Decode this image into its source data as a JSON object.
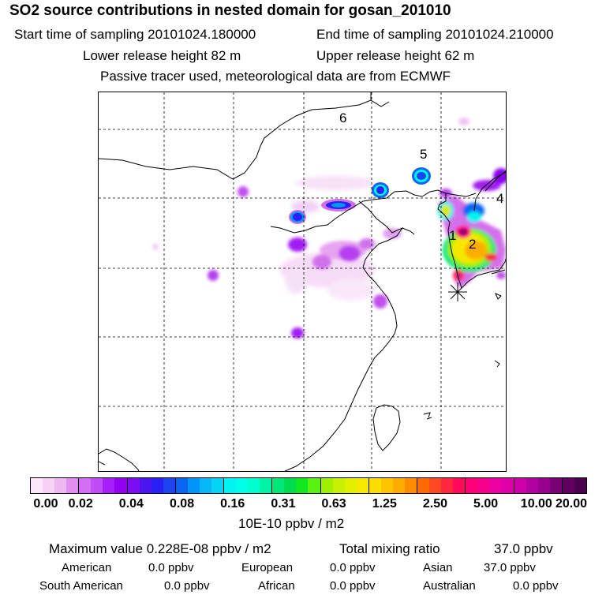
{
  "header": {
    "title": "SO2 source contributions in nested domain for gosan_201010",
    "start_label": "Start time of sampling 20101024.180000",
    "end_label": "End time of sampling 20101024.210000",
    "lower_label": "Lower release height   82 m",
    "upper_label": "Upper release height   62 m",
    "info": "Passive tracer used, meteorological data are from ECMWF"
  },
  "map_labels": {
    "l1": "1",
    "l2": "2",
    "l4": "4",
    "l5": "5",
    "l6": "6"
  },
  "colors": {
    "coast": "#000000",
    "grid": "#000000",
    "background": "#ffffff"
  },
  "chart_data": {
    "type": "heatmap",
    "title": "SO2 source contributions in nested domain for gosan_201010",
    "units": "10E-10 ppbv / m2",
    "legend_ticks": [
      "0.00",
      "0.02",
      "0.04",
      "0.08",
      "0.16",
      "0.31",
      "0.63",
      "1.25",
      "2.50",
      "5.00",
      "10.00",
      "20.00"
    ],
    "legend_colors": [
      "#fde8fb",
      "#f8d2f6",
      "#efb7f3",
      "#e28ef1",
      "#d46ef3",
      "#c04cf4",
      "#a81ef7",
      "#9400f2",
      "#7d0cf2",
      "#4a16f0",
      "#2a20f4",
      "#1e44f0",
      "#0a66f0",
      "#0096f5",
      "#08b8f6",
      "#06d4f4",
      "#00f4f0",
      "#00ffe8",
      "#00ffd0",
      "#00f4a8",
      "#00e878",
      "#00dc50",
      "#10e820",
      "#5af010",
      "#9cf000",
      "#c8f000",
      "#e2f000",
      "#f6e800",
      "#ffdc00",
      "#ffc400",
      "#ffac00",
      "#ff8c00",
      "#ff6a00",
      "#ff4820",
      "#ff2840",
      "#ff0a5a",
      "#ff0078",
      "#f8008e",
      "#ec00a0",
      "#e000aa",
      "#cc00a8",
      "#b200a0",
      "#96008c",
      "#7a0076",
      "#600060",
      "#4a004a"
    ],
    "site_marker": "asterisk"
  },
  "footer": {
    "max_label": "Maximum value  0.228E-08 ppbv / m2",
    "total_label": "Total mixing ratio",
    "total_value": "37.0 ppbv",
    "regions": [
      {
        "name": "American",
        "value": "0.0 ppbv"
      },
      {
        "name": "European",
        "value": "0.0 ppbv"
      },
      {
        "name": "Asian",
        "value": "37.0 ppbv"
      },
      {
        "name": "South American",
        "value": "0.0 ppbv"
      },
      {
        "name": "African",
        "value": "0.0 ppbv"
      },
      {
        "name": "Australian",
        "value": "0.0 ppbv"
      }
    ]
  }
}
